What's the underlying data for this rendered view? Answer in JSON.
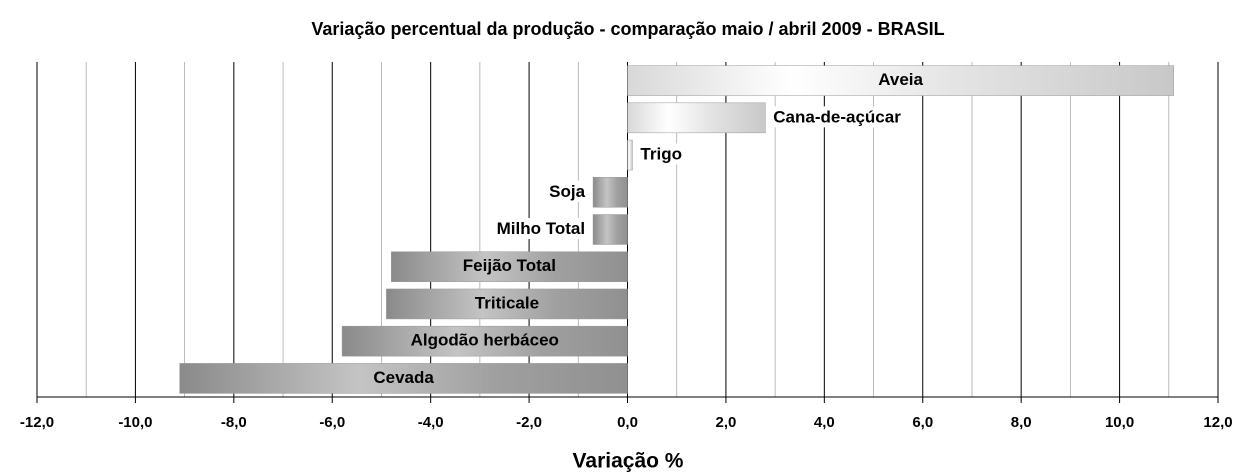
{
  "chart_data": {
    "type": "barh",
    "title": "Variação percentual da produção - comparação maio / abril 2009 - BRASIL",
    "xlabel": "Variação %",
    "categories": [
      "Aveia",
      "Cana-de-açúcar",
      "Trigo",
      "Soja",
      "Milho Total",
      "Feijão Total",
      "Triticale",
      "Algodão herbáceo",
      "Cevada"
    ],
    "values": [
      11.1,
      2.8,
      0.1,
      -0.7,
      -0.7,
      -4.8,
      -4.9,
      -5.8,
      -9.1
    ],
    "xlim": [
      -12,
      12
    ],
    "xticks": [
      {
        "value": -12,
        "label": "-12,0"
      },
      {
        "value": -10,
        "label": "-10,0"
      },
      {
        "value": -8,
        "label": "-8,0"
      },
      {
        "value": -6,
        "label": "-6,0"
      },
      {
        "value": -4,
        "label": "-4,0"
      },
      {
        "value": -2,
        "label": "-2,0"
      },
      {
        "value": 0,
        "label": "0,0"
      },
      {
        "value": 2,
        "label": "2,0"
      },
      {
        "value": 4,
        "label": "4,0"
      },
      {
        "value": 6,
        "label": "6,0"
      },
      {
        "value": 8,
        "label": "8,0"
      },
      {
        "value": 10,
        "label": "10,0"
      },
      {
        "value": 12,
        "label": "12,0"
      }
    ],
    "xminor_ticks": [
      -11,
      -9,
      -7,
      -5,
      -3,
      -1,
      1,
      3,
      5,
      7,
      9,
      11
    ],
    "grid": true
  }
}
